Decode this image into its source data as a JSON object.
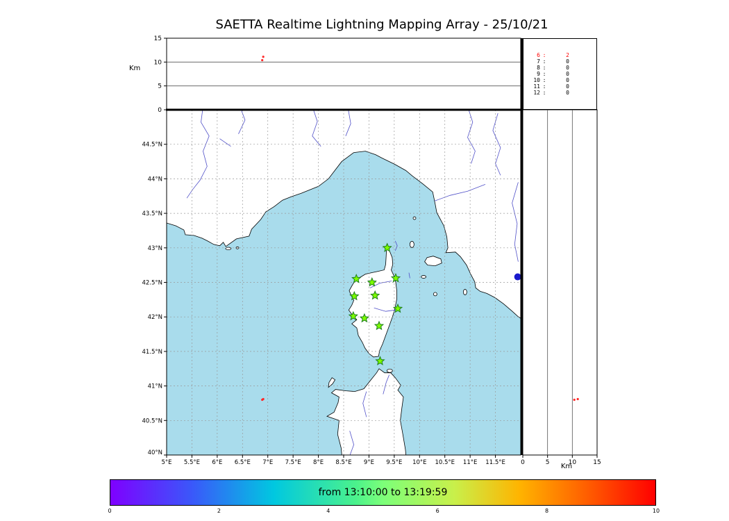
{
  "title": "SAETTA Realtime Lightning Mapping Array - 25/10/21",
  "colors": {
    "sea": "#a9dcec",
    "land": "#ffffff",
    "coast": "#000000",
    "river": "#5050c8",
    "grid": "#999999",
    "panel_grid": "#555555",
    "station_fill": "#7CFC00",
    "station_edge": "#1e7d1e",
    "source_red": "#ff2a2a",
    "source_blue": "#1a1acc"
  },
  "altitude_axis": {
    "label": "Km",
    "range": [
      0,
      15
    ],
    "ticks": [
      {
        "v": 0,
        "t": "0"
      },
      {
        "v": 5,
        "t": "5"
      },
      {
        "v": 10,
        "t": "10"
      },
      {
        "v": 15,
        "t": "15"
      }
    ]
  },
  "counts_panel": {
    "rows": [
      {
        "hour": "6",
        "count": "2",
        "color": "#ff0000"
      },
      {
        "hour": "7",
        "count": "0",
        "color": "#000000"
      },
      {
        "hour": "8",
        "count": "0",
        "color": "#000000"
      },
      {
        "hour": "9",
        "count": "0",
        "color": "#000000"
      },
      {
        "hour": "10",
        "count": "0",
        "color": "#000000"
      },
      {
        "hour": "11",
        "count": "0",
        "color": "#000000"
      },
      {
        "hour": "12",
        "count": "0",
        "color": "#000000"
      }
    ]
  },
  "map_panel": {
    "lon_ticks": [
      {
        "v": 5,
        "t": "5°E"
      },
      {
        "v": 5.5,
        "t": "5.5°E"
      },
      {
        "v": 6,
        "t": "6°E"
      },
      {
        "v": 6.5,
        "t": "6.5°E"
      },
      {
        "v": 7,
        "t": "7°E"
      },
      {
        "v": 7.5,
        "t": "7.5°E"
      },
      {
        "v": 8,
        "t": "8°E"
      },
      {
        "v": 8.5,
        "t": "8.5°E"
      },
      {
        "v": 9,
        "t": "9°E"
      },
      {
        "v": 9.5,
        "t": "9.5°E"
      },
      {
        "v": 10,
        "t": "10°E"
      },
      {
        "v": 10.5,
        "t": "10.5°E"
      },
      {
        "v": 11,
        "t": "11°E"
      },
      {
        "v": 11.5,
        "t": "11.5°E"
      }
    ],
    "lat_ticks": [
      {
        "v": 44.5,
        "t": "44.5°N"
      },
      {
        "v": 44,
        "t": "44°N"
      },
      {
        "v": 43.5,
        "t": "43.5°N"
      },
      {
        "v": 43,
        "t": "43°N"
      },
      {
        "v": 42.5,
        "t": "42.5°N"
      },
      {
        "v": 42,
        "t": "42°N"
      },
      {
        "v": 41.5,
        "t": "41.5°N"
      },
      {
        "v": 41,
        "t": "41°N"
      },
      {
        "v": 40.5,
        "t": "40.5°N"
      },
      {
        "v": 40,
        "t": "40°N"
      }
    ]
  },
  "colorbar": {
    "label": "from 13:10:00 to 13:19:59",
    "ticks": [
      "0",
      "2",
      "4",
      "6",
      "8",
      "10"
    ],
    "gradient": [
      "#7f00ff 0%",
      "#3a58fa 15%",
      "#00c8e0 30%",
      "#4bf28c 45%",
      "#7cff79 50%",
      "#c8f04b 63%",
      "#ffb400 75%",
      "#ff5a00 88%",
      "#ff0000 100%"
    ]
  },
  "chart_data": {
    "type": "scatter",
    "title": "SAETTA Realtime Lightning Mapping Array - 25/10/21",
    "time_window": "from 13:10:00 to 13:19:59",
    "map": {
      "lon_range": [
        5,
        12
      ],
      "lat_range": [
        40,
        45
      ],
      "grid_step_deg": 0.5
    },
    "alt_axis": {
      "range": [
        0,
        15
      ],
      "ticks": [
        0,
        5,
        10,
        15
      ],
      "label": "Km"
    },
    "stations": [
      {
        "lon": 9.36,
        "lat": 43.0
      },
      {
        "lon": 8.75,
        "lat": 42.55
      },
      {
        "lon": 9.06,
        "lat": 42.5
      },
      {
        "lon": 9.53,
        "lat": 42.56
      },
      {
        "lon": 8.71,
        "lat": 42.3
      },
      {
        "lon": 9.12,
        "lat": 42.31
      },
      {
        "lon": 9.57,
        "lat": 42.12
      },
      {
        "lon": 8.69,
        "lat": 42.01
      },
      {
        "lon": 8.91,
        "lat": 41.98
      },
      {
        "lon": 9.2,
        "lat": 41.87
      },
      {
        "lon": 9.22,
        "lat": 41.36
      }
    ],
    "sources": [
      {
        "lon": 6.89,
        "lat": 40.8,
        "alt_km": 10.4,
        "color": "#ff2a2a",
        "size": 1.6
      },
      {
        "lon": 6.91,
        "lat": 40.81,
        "alt_km": 11.1,
        "color": "#ff2a2a",
        "size": 1.6
      },
      {
        "lon": 11.94,
        "lat": 42.58,
        "alt_km": null,
        "color": "#1a1acc",
        "size": 5
      }
    ],
    "hourly_counts": [
      {
        "hour": 6,
        "count": 2
      },
      {
        "hour": 7,
        "count": 0
      },
      {
        "hour": 8,
        "count": 0
      },
      {
        "hour": 9,
        "count": 0
      },
      {
        "hour": 10,
        "count": 0
      },
      {
        "hour": 11,
        "count": 0
      },
      {
        "hour": 12,
        "count": 0
      }
    ],
    "colorbar": {
      "range": [
        0,
        10
      ],
      "ticks": [
        0,
        2,
        4,
        6,
        8,
        10
      ],
      "label": "from 13:10:00 to 13:19:59"
    }
  }
}
